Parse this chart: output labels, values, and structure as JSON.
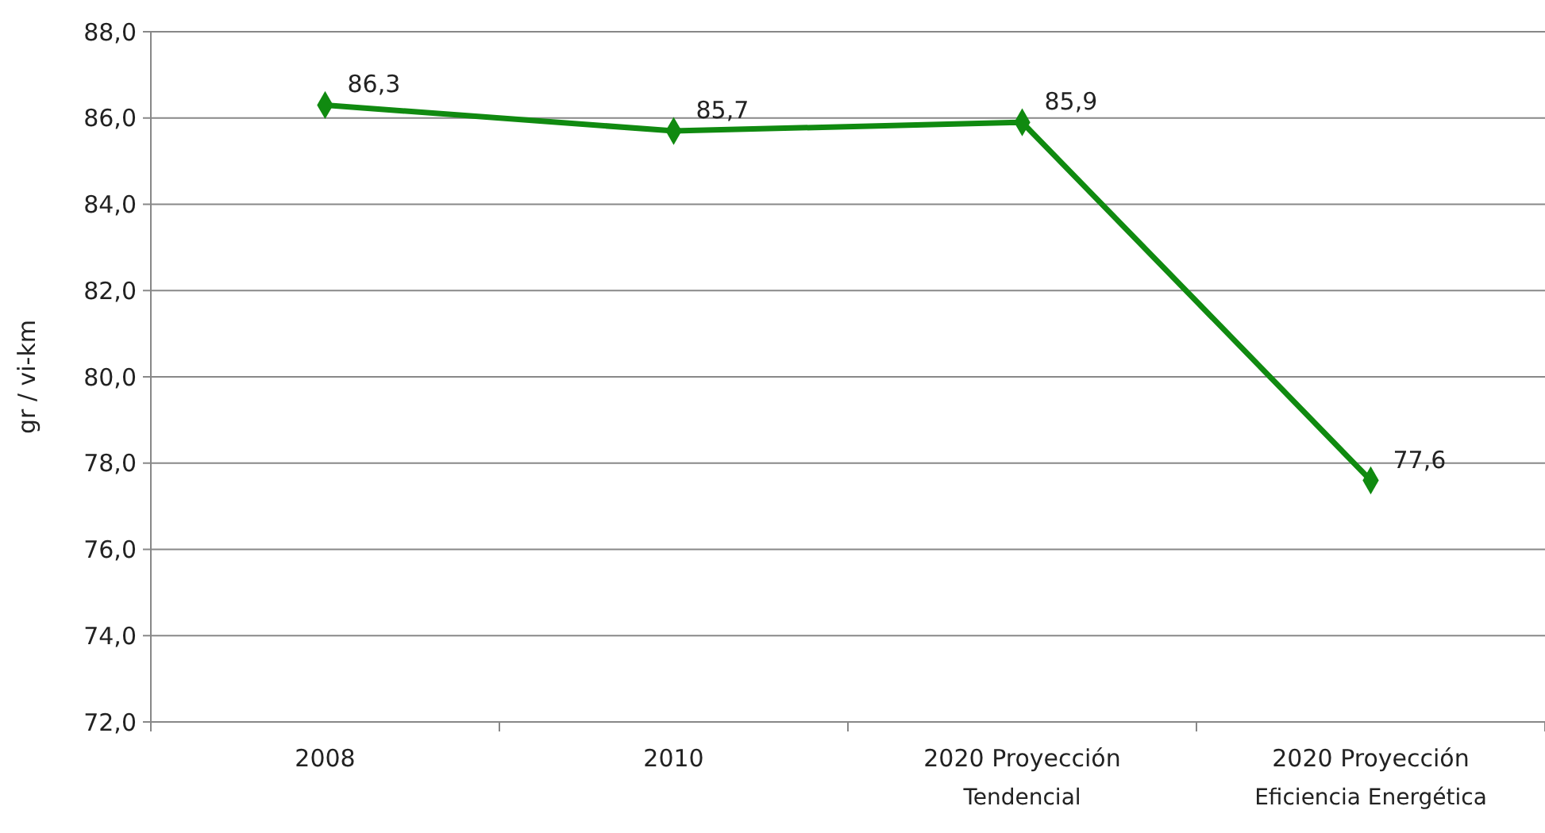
{
  "chart_data": {
    "type": "line",
    "ylabel": "gr / vi-km",
    "categories": [
      "2008",
      "2010",
      "2020 Proyección Tendencial",
      "2020 Proyección Eficiencia Energética"
    ],
    "series": [
      {
        "color": "#108a10",
        "values": [
          86.3,
          85.7,
          85.9,
          77.6
        ],
        "value_labels": [
          "86,3",
          "85,7",
          "85,9",
          "77,6"
        ]
      }
    ],
    "ylim": [
      72,
      88
    ],
    "yticks": [
      {
        "value": 72,
        "label": "72,0"
      },
      {
        "value": 74,
        "label": "74,0"
      },
      {
        "value": 76,
        "label": "76,0"
      },
      {
        "value": 78,
        "label": "78,0"
      },
      {
        "value": 80,
        "label": "80,0"
      },
      {
        "value": 82,
        "label": "82,0"
      },
      {
        "value": 84,
        "label": "84,0"
      },
      {
        "value": 86,
        "label": "86,0"
      },
      {
        "value": 88,
        "label": "88,0"
      }
    ],
    "grid": "y",
    "marker": "diamond",
    "line_style": "solid"
  }
}
